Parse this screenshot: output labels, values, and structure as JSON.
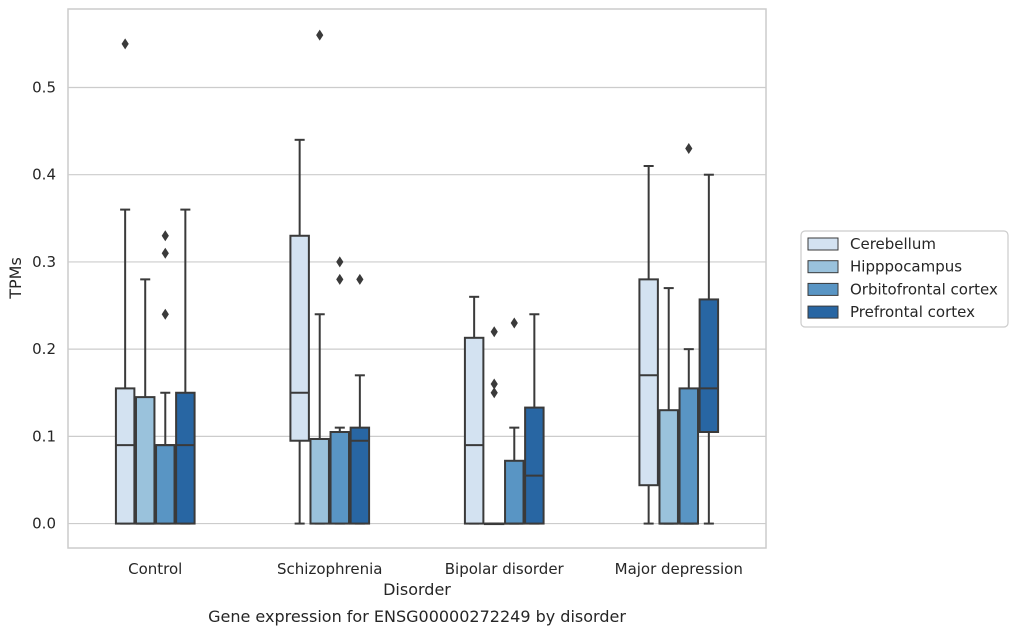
{
  "chart_data": {
    "type": "box",
    "title": "",
    "caption": "Gene expression for ENSG00000272249 by disorder",
    "xlabel": "Disorder",
    "ylabel": "TPMs",
    "ylim": [
      -0.028,
      0.59
    ],
    "yticks": [
      0.0,
      0.1,
      0.2,
      0.3,
      0.4,
      0.5
    ],
    "ytick_labels": [
      "0.0",
      "0.1",
      "0.2",
      "0.3",
      "0.4",
      "0.5"
    ],
    "grid": "horizontal",
    "legend_position": "right",
    "categories": [
      "Control",
      "Schizophrenia",
      "Bipolar disorder",
      "Major depression"
    ],
    "series": [
      {
        "name": "Cerebellum",
        "color": "#d3e2f1",
        "boxes": [
          {
            "whisker_low": 0.0,
            "q1": 0.0,
            "median": 0.09,
            "q3": 0.155,
            "whisker_high": 0.36,
            "outliers": [
              0.55
            ]
          },
          {
            "whisker_low": 0.0,
            "q1": 0.095,
            "median": 0.15,
            "q3": 0.33,
            "whisker_high": 0.44,
            "outliers": []
          },
          {
            "whisker_low": 0.0,
            "q1": 0.0,
            "median": 0.09,
            "q3": 0.213,
            "whisker_high": 0.26,
            "outliers": []
          },
          {
            "whisker_low": 0.0,
            "q1": 0.044,
            "median": 0.17,
            "q3": 0.28,
            "whisker_high": 0.41,
            "outliers": []
          }
        ]
      },
      {
        "name": "Hipppocampus",
        "color": "#9ac2dc",
        "boxes": [
          {
            "whisker_low": 0.0,
            "q1": 0.0,
            "median": 0.0,
            "q3": 0.145,
            "whisker_high": 0.28,
            "outliers": []
          },
          {
            "whisker_low": 0.0,
            "q1": 0.0,
            "median": 0.097,
            "q3": 0.097,
            "whisker_high": 0.24,
            "outliers": [
              0.56
            ]
          },
          {
            "whisker_low": 0.0,
            "q1": 0.0,
            "median": 0.0,
            "q3": 0.0,
            "whisker_high": 0.0,
            "outliers": [
              0.15,
              0.16,
              0.22
            ]
          },
          {
            "whisker_low": 0.0,
            "q1": 0.0,
            "median": 0.0,
            "q3": 0.13,
            "whisker_high": 0.27,
            "outliers": []
          }
        ]
      },
      {
        "name": "Orbitofrontal cortex",
        "color": "#5995c4",
        "boxes": [
          {
            "whisker_low": 0.0,
            "q1": 0.0,
            "median": 0.09,
            "q3": 0.09,
            "whisker_high": 0.15,
            "outliers": [
              0.24,
              0.31,
              0.33
            ]
          },
          {
            "whisker_low": 0.0,
            "q1": 0.0,
            "median": 0.105,
            "q3": 0.105,
            "whisker_high": 0.11,
            "outliers": [
              0.28,
              0.3
            ]
          },
          {
            "whisker_low": 0.0,
            "q1": 0.0,
            "median": 0.0,
            "q3": 0.072,
            "whisker_high": 0.11,
            "outliers": [
              0.23
            ]
          },
          {
            "whisker_low": 0.0,
            "q1": 0.0,
            "median": 0.0,
            "q3": 0.155,
            "whisker_high": 0.2,
            "outliers": [
              0.43
            ]
          }
        ]
      },
      {
        "name": "Prefrontal cortex",
        "color": "#2866a3",
        "boxes": [
          {
            "whisker_low": 0.0,
            "q1": 0.0,
            "median": 0.09,
            "q3": 0.15,
            "whisker_high": 0.36,
            "outliers": []
          },
          {
            "whisker_low": 0.0,
            "q1": 0.0,
            "median": 0.095,
            "q3": 0.11,
            "whisker_high": 0.17,
            "outliers": [
              0.28
            ]
          },
          {
            "whisker_low": 0.0,
            "q1": 0.0,
            "median": 0.055,
            "q3": 0.133,
            "whisker_high": 0.24,
            "outliers": []
          },
          {
            "whisker_low": 0.0,
            "q1": 0.105,
            "median": 0.155,
            "q3": 0.257,
            "whisker_high": 0.4,
            "outliers": []
          }
        ]
      }
    ]
  }
}
